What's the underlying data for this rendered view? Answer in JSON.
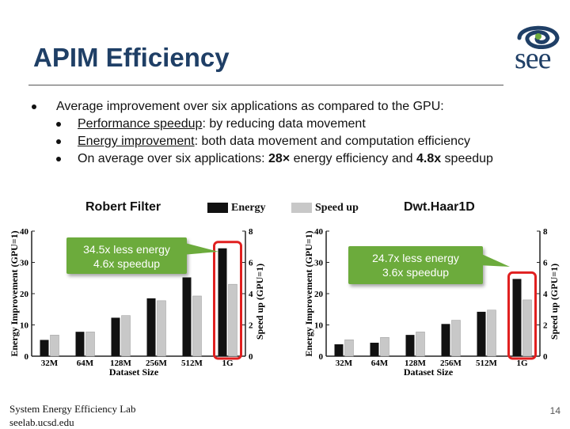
{
  "slide": {
    "title": "APIM Efficiency",
    "logo_text": "see",
    "bullets": [
      {
        "prefix": "",
        "underlined": "",
        "text": "Average improvement over six applications as compared to the GPU:"
      },
      {
        "prefix": "",
        "underlined": "Performance speedup",
        "text": ": by reducing data movement"
      },
      {
        "prefix": "",
        "underlined": "Energy improvement",
        "text": ": both data movement and computation efficiency"
      },
      {
        "prefix": "On average over six applications: ",
        "bold1": "28×",
        "mid": " energy efficiency and ",
        "bold2": "4.8x",
        "suffix": " speedup"
      }
    ],
    "legend": {
      "energy": "Energy",
      "speedup": "Speed up"
    },
    "footer": {
      "line1": "System Energy Efficiency Lab",
      "line2": "seelab.ucsd.edu"
    },
    "page_number": "14",
    "colors": {
      "title": "#1f3f66",
      "energy_bar": "#111111",
      "speedup_bar": "#c8c8c8",
      "callout": "#6cab3c",
      "highlight": "#e02020"
    }
  },
  "chart_data": [
    {
      "type": "bar",
      "title": "Robert Filter",
      "categories": [
        "32M",
        "64M",
        "128M",
        "256M",
        "512M",
        "1G"
      ],
      "xlabel": "Dataset Size",
      "ylabel": "Energy Improvement (GPU=1)",
      "y2label": "Speed up (GPU=1)",
      "ylim": [
        0,
        40
      ],
      "y2lim": [
        0,
        8
      ],
      "yticks": [
        "0",
        "10",
        "20",
        "30",
        "40"
      ],
      "y2ticks": [
        "0",
        "2",
        "4",
        "6",
        "8"
      ],
      "series": [
        {
          "name": "Energy",
          "axis": "left",
          "values": [
            5.2,
            7.8,
            12.3,
            18.5,
            25.2,
            34.5
          ]
        },
        {
          "name": "Speed up",
          "axis": "right",
          "values": [
            1.35,
            1.55,
            2.6,
            3.55,
            3.85,
            4.6
          ]
        }
      ],
      "callout": {
        "line1": "34.5x less energy",
        "line2": "4.6x speedup"
      }
    },
    {
      "type": "bar",
      "title": "Dwt.Haar1D",
      "categories": [
        "32M",
        "64M",
        "128M",
        "256M",
        "512M",
        "1G"
      ],
      "xlabel": "Dataset Size",
      "ylabel": "Energy Improvement (GPU=1)",
      "y2label": "Speed up (GPU=1)",
      "ylim": [
        0,
        40
      ],
      "y2lim": [
        0,
        8
      ],
      "yticks": [
        "0",
        "10",
        "20",
        "30",
        "40"
      ],
      "y2ticks": [
        "0",
        "2",
        "4",
        "6",
        "8"
      ],
      "series": [
        {
          "name": "Energy",
          "axis": "left",
          "values": [
            3.8,
            4.3,
            6.8,
            10.3,
            14.2,
            24.7
          ]
        },
        {
          "name": "Speed up",
          "axis": "right",
          "values": [
            1.05,
            1.2,
            1.55,
            2.3,
            2.95,
            3.6
          ]
        }
      ],
      "callout": {
        "line1": "24.7x less energy",
        "line2": "3.6x speedup"
      }
    }
  ]
}
